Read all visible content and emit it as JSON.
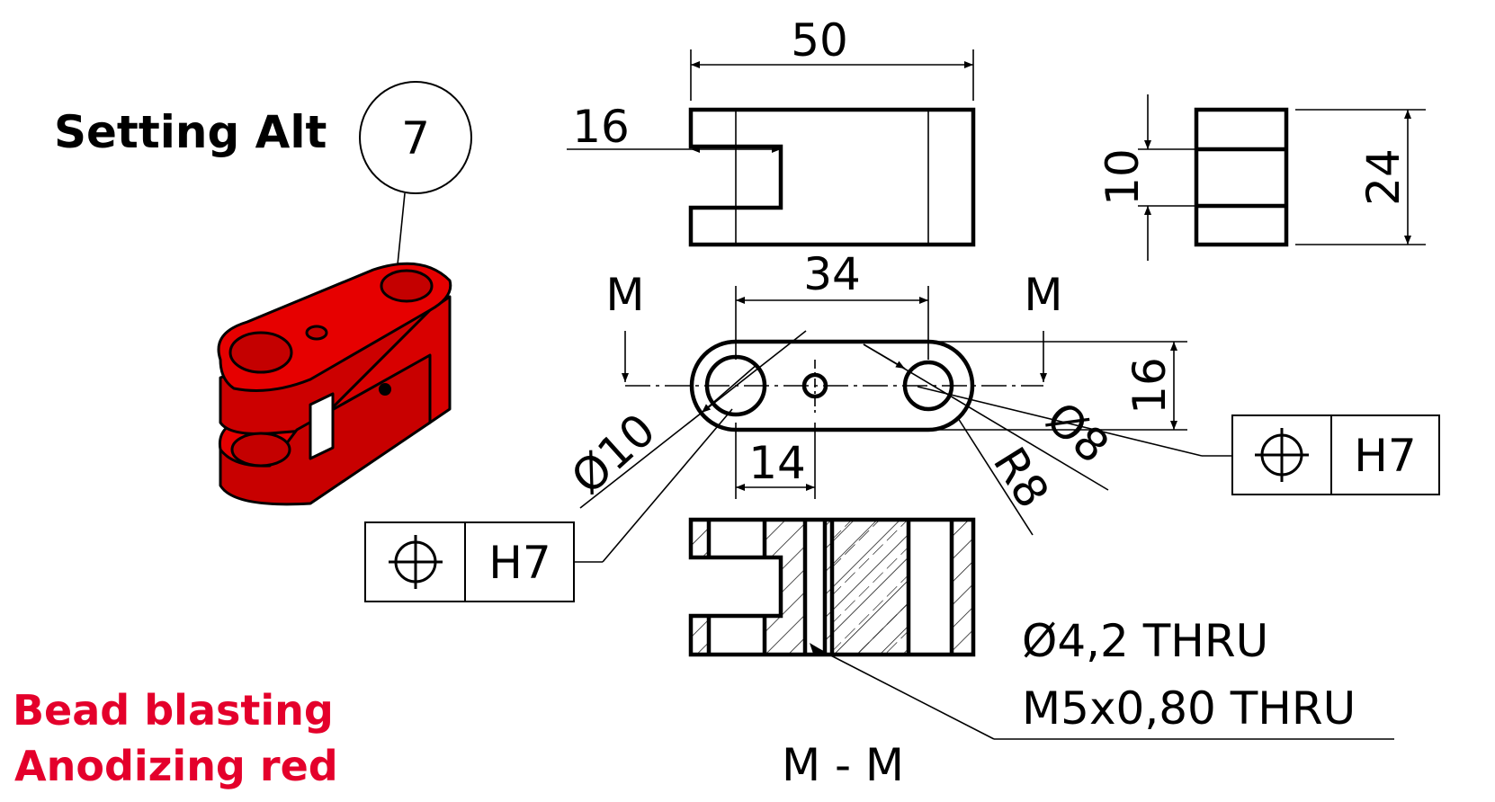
{
  "part": {
    "title": "Setting Alt",
    "balloon_number": "7"
  },
  "finish": {
    "line1": "Bead blasting",
    "line2": "Anodizing red",
    "color": "#e4002b"
  },
  "body_color": "#e60000",
  "dimensions": {
    "overall_length": "50",
    "slot_depth": "16",
    "hole_spacing": "34",
    "width": "16",
    "slot_width": "10",
    "height": "24",
    "center_hole_offset": "14",
    "hole_large_dia": "Ø10",
    "hole_small_dia": "Ø8",
    "end_radius": "R8"
  },
  "section": {
    "label_left": "M",
    "label_right": "M",
    "view_title": "M - M"
  },
  "tolerance_frames": [
    {
      "symbol": "position-icon",
      "tolerance": "H7"
    },
    {
      "symbol": "position-icon",
      "tolerance": "H7"
    }
  ],
  "notes": {
    "hole_note_line1": "Ø4,2 THRU",
    "hole_note_line2": "M5x0,80 THRU"
  }
}
